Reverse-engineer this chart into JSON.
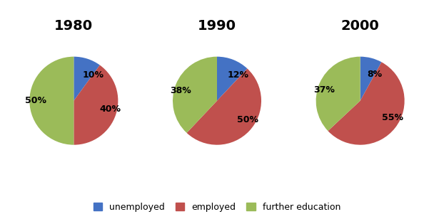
{
  "years": [
    "1980",
    "1990",
    "2000"
  ],
  "categories": [
    "unemployed",
    "employed",
    "further education"
  ],
  "colors": [
    "#4472c4",
    "#c0504d",
    "#9bbb59"
  ],
  "values": [
    [
      10,
      40,
      50
    ],
    [
      12,
      50,
      38
    ],
    [
      8,
      55,
      37
    ]
  ],
  "labels": [
    [
      "10%",
      "40%",
      "50%"
    ],
    [
      "12%",
      "50%",
      "38%"
    ],
    [
      "8%",
      "55%",
      "37%"
    ]
  ],
  "background_color": "#ffffff",
  "title_fontsize": 14,
  "label_fontsize": 9,
  "legend_fontsize": 9
}
